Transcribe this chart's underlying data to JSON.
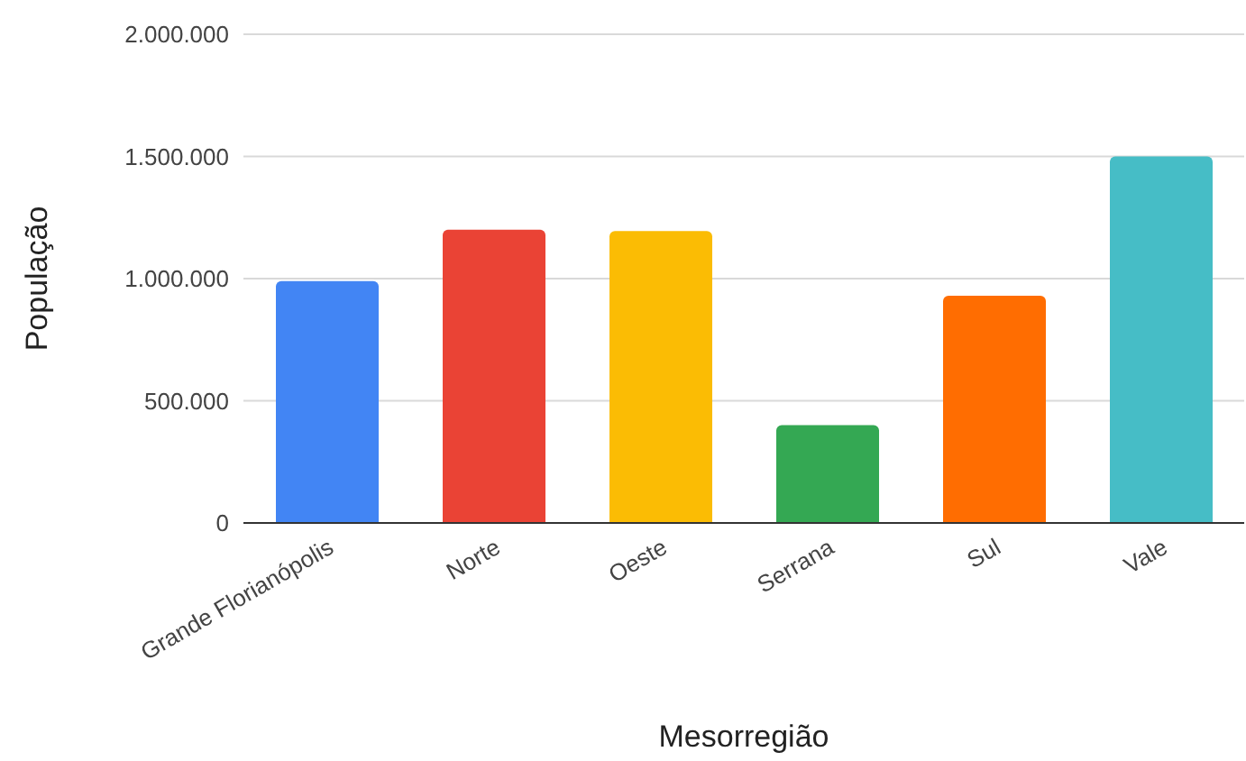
{
  "chart_data": {
    "type": "bar",
    "xlabel": "Mesorregião",
    "ylabel": "População",
    "categories": [
      "Grande Florianópolis",
      "Norte",
      "Oeste",
      "Serrana",
      "Sul",
      "Vale"
    ],
    "values": [
      990000,
      1200000,
      1195000,
      400000,
      930000,
      1500000
    ],
    "colors": [
      "#4285f4",
      "#ea4335",
      "#fbbc04",
      "#34a853",
      "#ff6d01",
      "#46bdc6"
    ],
    "ylim": [
      0,
      2000000
    ],
    "yticks": [
      0,
      {
        "value": 500000,
        "label": "500.000"
      },
      {
        "value": 1000000,
        "label": "1.000.000"
      },
      {
        "value": 1500000,
        "label": "1.500.000"
      },
      {
        "value": 2000000,
        "label": "2.000.000"
      }
    ],
    "grid": "y",
    "legend": false
  }
}
